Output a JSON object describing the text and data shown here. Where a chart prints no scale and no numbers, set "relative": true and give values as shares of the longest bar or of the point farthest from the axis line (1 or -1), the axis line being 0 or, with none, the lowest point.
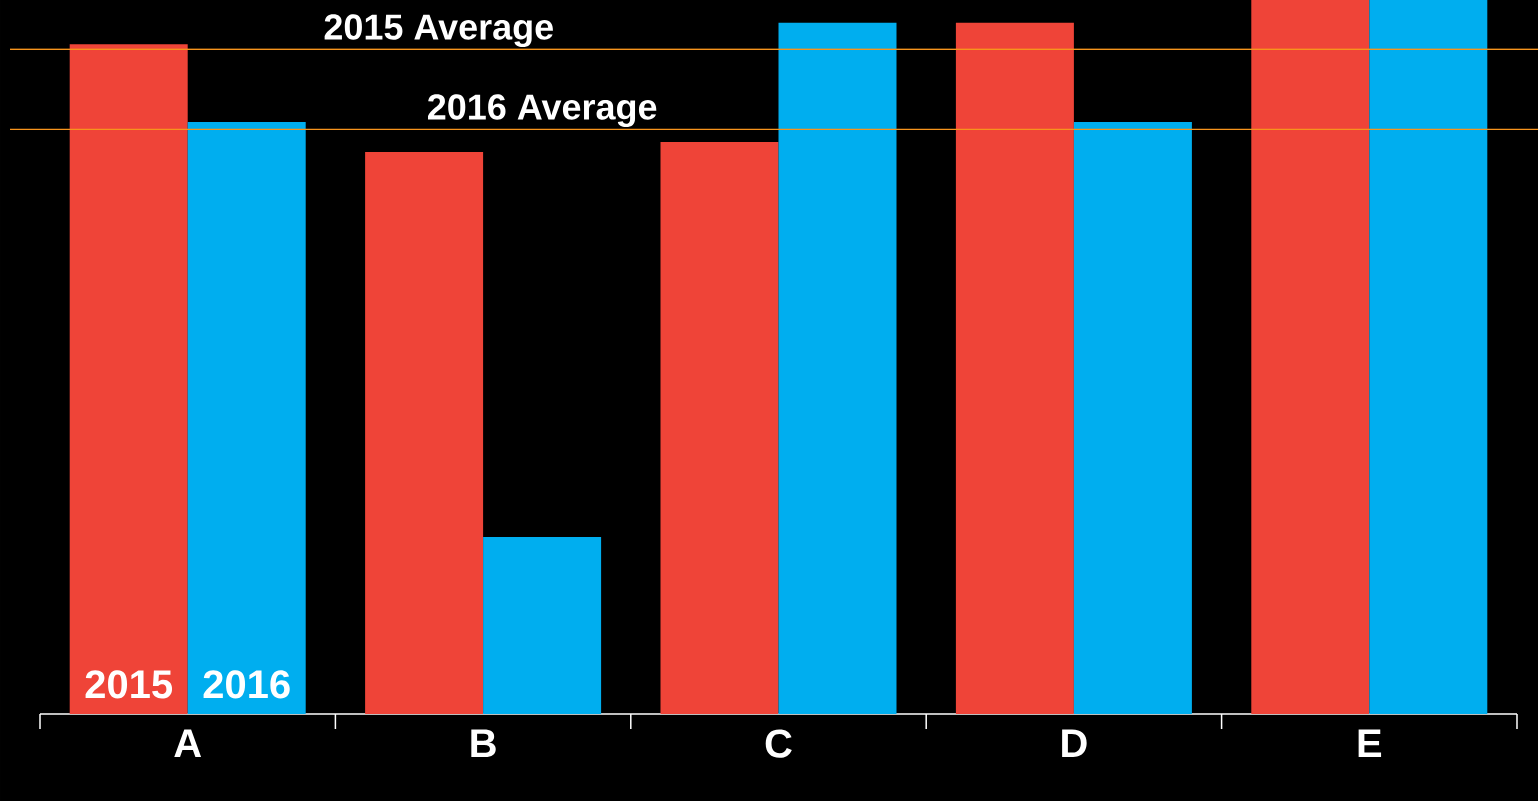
{
  "chart_data": {
    "type": "bar",
    "relative": true,
    "categories": [
      "A",
      "B",
      "C",
      "D",
      "E"
    ],
    "series": [
      {
        "name": "2015",
        "color": "#ef4438",
        "values": [
          0.938,
          0.787,
          0.801,
          0.968,
          1
        ]
      },
      {
        "name": "2016",
        "color": "#00aeef",
        "values": [
          0.829,
          0.248,
          0.968,
          0.829,
          1
        ]
      }
    ],
    "ref_lines": [
      {
        "axis": "y",
        "value": 0.931,
        "label": "2015 Average",
        "color": "#f7941d"
      },
      {
        "axis": "y",
        "value": 0.819,
        "label": "2016 Average",
        "color": "#f7941d"
      }
    ]
  }
}
